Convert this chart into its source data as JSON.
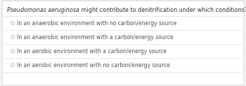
{
  "title_italic": "Pseudomonas aeruginosa",
  "title_normal": " might contribute to denitrification under which conditions?",
  "options": [
    "In an anaerobic environment with no carbon/energy source",
    "In an anaerobic environment with a carbon/energy source",
    "In an aerobic environment with a carbon/energy source",
    "In an aerobic environment with no carbon/energy source"
  ],
  "bg_color": "#f5f5f5",
  "box_color": "#ffffff",
  "border_color": "#cccccc",
  "title_color": "#333333",
  "option_color": "#555555",
  "circle_edge_color": "#aaaaaa",
  "circle_face_color": "#ffffff",
  "divider_color": "#dddddd",
  "title_fontsize": 5.8,
  "option_fontsize": 5.5
}
